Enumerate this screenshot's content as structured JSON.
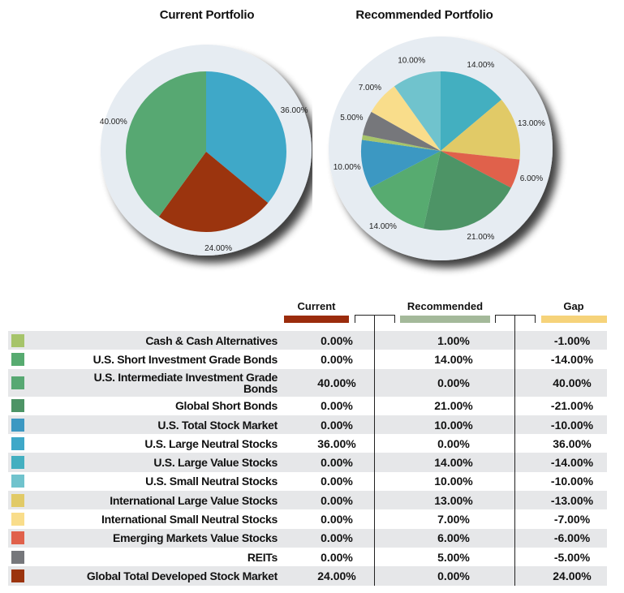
{
  "chart_data": [
    {
      "type": "pie",
      "title": "Current Portfolio",
      "slices": [
        {
          "label": "U.S. Large Neutral Stocks",
          "value": 36,
          "text": "36.00%",
          "color": "#3fa8c8"
        },
        {
          "label": "Global Total Developed Stock Market",
          "value": 24,
          "text": "24.00%",
          "color": "#9b340e"
        },
        {
          "label": "U.S. Intermediate Investment Grade Bonds",
          "value": 40,
          "text": "40.00%",
          "color": "#57a872"
        }
      ]
    },
    {
      "type": "pie",
      "title": "Recommended Portfolio",
      "slices": [
        {
          "label": "U.S. Large Value Stocks",
          "value": 14,
          "text": "14.00%",
          "color": "#43afc0"
        },
        {
          "label": "International Large Value Stocks",
          "value": 13,
          "text": "13.00%",
          "color": "#e1ca67"
        },
        {
          "label": "Emerging Markets Value Stocks",
          "value": 6,
          "text": "6.00%",
          "color": "#e0614b"
        },
        {
          "label": "Global Short Bonds",
          "value": 21,
          "text": "21.00%",
          "color": "#4d9466"
        },
        {
          "label": "U.S. Short Investment Grade Bonds",
          "value": 14,
          "text": "14.00%",
          "color": "#57ab70"
        },
        {
          "label": "U.S. Total Stock Market",
          "value": 10,
          "text": "10.00%",
          "color": "#3c98c2"
        },
        {
          "label": "Cash & Cash Alternatives",
          "value": 1,
          "text": "",
          "color": "#a6c46a"
        },
        {
          "label": "REITs",
          "value": 5,
          "text": "5.00%",
          "color": "#76777b"
        },
        {
          "label": "International Small Neutral Stocks",
          "value": 7,
          "text": "7.00%",
          "color": "#f9dd8b"
        },
        {
          "label": "U.S. Small Neutral Stocks",
          "value": 10,
          "text": "10.00%",
          "color": "#70c3cd"
        }
      ]
    }
  ],
  "legend": {
    "current": {
      "label": "Current",
      "color": "#9b2c0c"
    },
    "recommended": {
      "label": "Recommended",
      "color": "#a4b99a"
    },
    "gap": {
      "label": "Gap",
      "color": "#f6d37a"
    }
  },
  "table": {
    "rows": [
      {
        "name": "Cash & Cash Alternatives",
        "color": "#a6c46a",
        "current": "0.00%",
        "recommended": "1.00%",
        "gap": "-1.00%"
      },
      {
        "name": "U.S. Short Investment Grade Bonds",
        "color": "#57ab70",
        "current": "0.00%",
        "recommended": "14.00%",
        "gap": "-14.00%"
      },
      {
        "name": "U.S. Intermediate Investment Grade Bonds",
        "color": "#57a872",
        "current": "40.00%",
        "recommended": "0.00%",
        "gap": "40.00%"
      },
      {
        "name": "Global Short Bonds",
        "color": "#4d9466",
        "current": "0.00%",
        "recommended": "21.00%",
        "gap": "-21.00%"
      },
      {
        "name": "U.S. Total Stock Market",
        "color": "#3c98c2",
        "current": "0.00%",
        "recommended": "10.00%",
        "gap": "-10.00%"
      },
      {
        "name": "U.S. Large Neutral Stocks",
        "color": "#3fa8c8",
        "current": "36.00%",
        "recommended": "0.00%",
        "gap": "36.00%"
      },
      {
        "name": "U.S. Large Value Stocks",
        "color": "#43afc0",
        "current": "0.00%",
        "recommended": "14.00%",
        "gap": "-14.00%"
      },
      {
        "name": "U.S. Small Neutral Stocks",
        "color": "#70c3cd",
        "current": "0.00%",
        "recommended": "10.00%",
        "gap": "-10.00%"
      },
      {
        "name": "International Large Value Stocks",
        "color": "#e1ca67",
        "current": "0.00%",
        "recommended": "13.00%",
        "gap": "-13.00%"
      },
      {
        "name": "International Small Neutral Stocks",
        "color": "#f9dd8b",
        "current": "0.00%",
        "recommended": "7.00%",
        "gap": "-7.00%"
      },
      {
        "name": "Emerging Markets Value Stocks",
        "color": "#e0614b",
        "current": "0.00%",
        "recommended": "6.00%",
        "gap": "-6.00%"
      },
      {
        "name": "REITs",
        "color": "#76777b",
        "current": "0.00%",
        "recommended": "5.00%",
        "gap": "-5.00%"
      },
      {
        "name": "Global Total Developed Stock Market",
        "color": "#9b340e",
        "current": "24.00%",
        "recommended": "0.00%",
        "gap": "24.00%"
      }
    ]
  }
}
